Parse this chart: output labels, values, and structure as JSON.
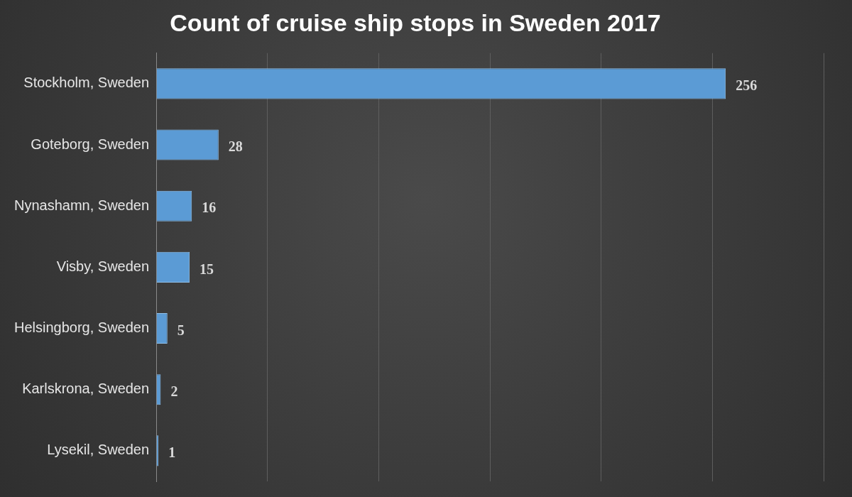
{
  "chart_data": {
    "type": "bar",
    "orientation": "horizontal",
    "title": "Count of cruise ship stops in Sweden 2017",
    "categories": [
      "Stockholm, Sweden",
      "Goteborg, Sweden",
      "Nynashamn, Sweden",
      "Visby, Sweden",
      "Helsingborg, Sweden",
      "Karlskrona, Sweden",
      "Lysekil, Sweden"
    ],
    "values": [
      256,
      28,
      16,
      15,
      5,
      2,
      1
    ],
    "color": "#5b9bd5",
    "xlim": [
      0,
      300
    ],
    "xticks": [
      {
        "value": 0,
        "label": null
      },
      {
        "value": 50,
        "label": null
      },
      {
        "value": 100,
        "label": null
      },
      {
        "value": 150,
        "label": null
      },
      {
        "value": 200,
        "label": null
      },
      {
        "value": 250,
        "label": null
      },
      {
        "value": 300,
        "label": null
      }
    ],
    "grid": "x",
    "tick_labels": "y",
    "data_labels": true,
    "legend": false
  }
}
